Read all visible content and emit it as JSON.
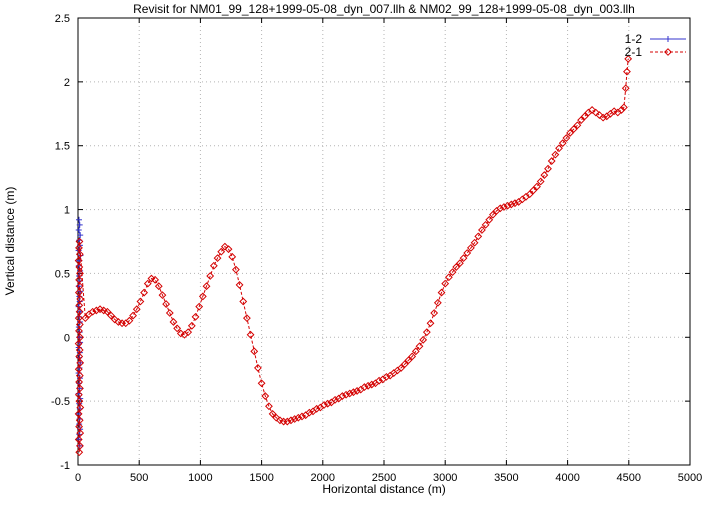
{
  "chart_data": {
    "type": "line",
    "title": "Revisit for NM01_99_128+1999-05-08_dyn_007.llh & NM02_99_128+1999-05-08_dyn_003.llh",
    "xlabel": "Horizontal distance (m)",
    "ylabel": "Vertical distance (m)",
    "xlim": [
      0,
      5000
    ],
    "ylim": [
      -1,
      2.5
    ],
    "grid": true,
    "grid_color": "#b4b4b4",
    "frame_color": "#000000",
    "legend_position": "top-right",
    "x_ticks": {
      "values": [
        0,
        500,
        1000,
        1500,
        2000,
        2500,
        3000,
        3500,
        4000,
        4500,
        5000
      ],
      "labels": [
        "0",
        "500",
        "1000",
        "1500",
        "2000",
        "2500",
        "3000",
        "3500",
        "4000",
        "4500",
        "5000"
      ]
    },
    "y_ticks": {
      "values": [
        -1,
        -0.5,
        0,
        0.5,
        1,
        1.5,
        2,
        2.5
      ],
      "labels": [
        "-1",
        "-0.5",
        "0",
        "0.5",
        "1",
        "1.5",
        "2",
        "2.5"
      ]
    },
    "series": [
      {
        "name": "1-2",
        "color": "#3333cc",
        "marker": "plus",
        "line": "solid",
        "points": [
          [
            8,
            0.92
          ],
          [
            14,
            0.88
          ],
          [
            6,
            0.84
          ],
          [
            18,
            0.8
          ],
          [
            10,
            0.76
          ],
          [
            16,
            0.72
          ],
          [
            5,
            0.68
          ],
          [
            20,
            0.64
          ],
          [
            12,
            0.6
          ],
          [
            7,
            0.56
          ],
          [
            17,
            0.52
          ],
          [
            9,
            0.48
          ],
          [
            15,
            0.44
          ],
          [
            6,
            0.4
          ],
          [
            19,
            0.36
          ],
          [
            11,
            0.32
          ],
          [
            14,
            0.28
          ],
          [
            5,
            0.24
          ],
          [
            18,
            0.2
          ],
          [
            9,
            0.16
          ],
          [
            16,
            0.12
          ],
          [
            7,
            0.08
          ],
          [
            13,
            0.04
          ],
          [
            10,
            0.0
          ],
          [
            17,
            -0.04
          ],
          [
            6,
            -0.08
          ],
          [
            15,
            -0.12
          ],
          [
            9,
            -0.16
          ],
          [
            19,
            -0.2
          ],
          [
            12,
            -0.24
          ],
          [
            5,
            -0.28
          ],
          [
            16,
            -0.32
          ],
          [
            8,
            -0.36
          ],
          [
            14,
            -0.4
          ],
          [
            6,
            -0.44
          ],
          [
            18,
            -0.48
          ],
          [
            10,
            -0.52
          ],
          [
            15,
            -0.56
          ],
          [
            7,
            -0.6
          ],
          [
            13,
            -0.64
          ],
          [
            9,
            -0.68
          ],
          [
            17,
            -0.72
          ],
          [
            11,
            -0.76
          ],
          [
            6,
            -0.8
          ],
          [
            14,
            -0.85
          ]
        ]
      },
      {
        "name": "2-1",
        "color": "#d40000",
        "marker": "diamond",
        "line": "dashed",
        "points": [
          [
            10,
            -0.9
          ],
          [
            16,
            -0.85
          ],
          [
            6,
            -0.8
          ],
          [
            18,
            -0.75
          ],
          [
            9,
            -0.7
          ],
          [
            14,
            -0.65
          ],
          [
            5,
            -0.6
          ],
          [
            19,
            -0.55
          ],
          [
            11,
            -0.5
          ],
          [
            7,
            -0.45
          ],
          [
            16,
            -0.4
          ],
          [
            9,
            -0.35
          ],
          [
            15,
            -0.3
          ],
          [
            6,
            -0.25
          ],
          [
            18,
            -0.2
          ],
          [
            10,
            -0.15
          ],
          [
            14,
            -0.1
          ],
          [
            5,
            -0.05
          ],
          [
            17,
            0.0
          ],
          [
            8,
            0.05
          ],
          [
            15,
            0.1
          ],
          [
            6,
            0.15
          ],
          [
            13,
            0.2
          ],
          [
            10,
            0.25
          ],
          [
            18,
            0.3
          ],
          [
            7,
            0.35
          ],
          [
            14,
            0.4
          ],
          [
            9,
            0.45
          ],
          [
            16,
            0.5
          ],
          [
            11,
            0.55
          ],
          [
            5,
            0.6
          ],
          [
            15,
            0.65
          ],
          [
            8,
            0.7
          ],
          [
            12,
            0.75
          ],
          [
            60,
            0.15
          ],
          [
            90,
            0.18
          ],
          [
            120,
            0.2
          ],
          [
            150,
            0.21
          ],
          [
            180,
            0.22
          ],
          [
            210,
            0.21
          ],
          [
            240,
            0.2
          ],
          [
            270,
            0.17
          ],
          [
            300,
            0.14
          ],
          [
            330,
            0.12
          ],
          [
            360,
            0.11
          ],
          [
            390,
            0.11
          ],
          [
            420,
            0.13
          ],
          [
            450,
            0.17
          ],
          [
            480,
            0.22
          ],
          [
            510,
            0.28
          ],
          [
            540,
            0.35
          ],
          [
            570,
            0.42
          ],
          [
            600,
            0.46
          ],
          [
            630,
            0.45
          ],
          [
            660,
            0.4
          ],
          [
            690,
            0.33
          ],
          [
            720,
            0.26
          ],
          [
            750,
            0.19
          ],
          [
            780,
            0.12
          ],
          [
            810,
            0.07
          ],
          [
            840,
            0.03
          ],
          [
            870,
            0.02
          ],
          [
            900,
            0.04
          ],
          [
            930,
            0.09
          ],
          [
            960,
            0.16
          ],
          [
            990,
            0.24
          ],
          [
            1020,
            0.32
          ],
          [
            1050,
            0.4
          ],
          [
            1080,
            0.48
          ],
          [
            1110,
            0.56
          ],
          [
            1140,
            0.62
          ],
          [
            1170,
            0.67
          ],
          [
            1200,
            0.71
          ],
          [
            1230,
            0.69
          ],
          [
            1260,
            0.63
          ],
          [
            1290,
            0.53
          ],
          [
            1320,
            0.41
          ],
          [
            1350,
            0.28
          ],
          [
            1380,
            0.15
          ],
          [
            1410,
            0.02
          ],
          [
            1440,
            -0.11
          ],
          [
            1470,
            -0.24
          ],
          [
            1500,
            -0.36
          ],
          [
            1530,
            -0.46
          ],
          [
            1560,
            -0.54
          ],
          [
            1590,
            -0.6
          ],
          [
            1620,
            -0.63
          ],
          [
            1650,
            -0.65
          ],
          [
            1680,
            -0.66
          ],
          [
            1710,
            -0.66
          ],
          [
            1740,
            -0.65
          ],
          [
            1770,
            -0.64
          ],
          [
            1800,
            -0.63
          ],
          [
            1830,
            -0.62
          ],
          [
            1860,
            -0.61
          ],
          [
            1890,
            -0.59
          ],
          [
            1920,
            -0.58
          ],
          [
            1950,
            -0.56
          ],
          [
            1980,
            -0.55
          ],
          [
            2010,
            -0.53
          ],
          [
            2040,
            -0.52
          ],
          [
            2070,
            -0.51
          ],
          [
            2100,
            -0.49
          ],
          [
            2130,
            -0.48
          ],
          [
            2160,
            -0.46
          ],
          [
            2190,
            -0.45
          ],
          [
            2220,
            -0.44
          ],
          [
            2250,
            -0.43
          ],
          [
            2280,
            -0.42
          ],
          [
            2310,
            -0.41
          ],
          [
            2340,
            -0.39
          ],
          [
            2370,
            -0.38
          ],
          [
            2400,
            -0.37
          ],
          [
            2430,
            -0.36
          ],
          [
            2460,
            -0.34
          ],
          [
            2490,
            -0.33
          ],
          [
            2520,
            -0.31
          ],
          [
            2550,
            -0.3
          ],
          [
            2580,
            -0.28
          ],
          [
            2610,
            -0.26
          ],
          [
            2640,
            -0.24
          ],
          [
            2670,
            -0.21
          ],
          [
            2700,
            -0.18
          ],
          [
            2730,
            -0.15
          ],
          [
            2760,
            -0.11
          ],
          [
            2790,
            -0.07
          ],
          [
            2820,
            -0.02
          ],
          [
            2850,
            0.04
          ],
          [
            2880,
            0.11
          ],
          [
            2910,
            0.19
          ],
          [
            2940,
            0.27
          ],
          [
            2970,
            0.35
          ],
          [
            3000,
            0.42
          ],
          [
            3030,
            0.47
          ],
          [
            3060,
            0.51
          ],
          [
            3090,
            0.55
          ],
          [
            3120,
            0.58
          ],
          [
            3150,
            0.62
          ],
          [
            3180,
            0.66
          ],
          [
            3210,
            0.7
          ],
          [
            3240,
            0.74
          ],
          [
            3270,
            0.79
          ],
          [
            3300,
            0.84
          ],
          [
            3330,
            0.88
          ],
          [
            3360,
            0.92
          ],
          [
            3390,
            0.96
          ],
          [
            3420,
            0.99
          ],
          [
            3450,
            1.01
          ],
          [
            3480,
            1.02
          ],
          [
            3510,
            1.03
          ],
          [
            3540,
            1.04
          ],
          [
            3570,
            1.05
          ],
          [
            3600,
            1.06
          ],
          [
            3630,
            1.08
          ],
          [
            3660,
            1.1
          ],
          [
            3690,
            1.12
          ],
          [
            3720,
            1.15
          ],
          [
            3750,
            1.18
          ],
          [
            3780,
            1.22
          ],
          [
            3810,
            1.27
          ],
          [
            3840,
            1.32
          ],
          [
            3870,
            1.38
          ],
          [
            3900,
            1.43
          ],
          [
            3930,
            1.48
          ],
          [
            3960,
            1.52
          ],
          [
            3990,
            1.56
          ],
          [
            4020,
            1.6
          ],
          [
            4050,
            1.63
          ],
          [
            4080,
            1.66
          ],
          [
            4110,
            1.7
          ],
          [
            4140,
            1.73
          ],
          [
            4170,
            1.76
          ],
          [
            4200,
            1.78
          ],
          [
            4230,
            1.76
          ],
          [
            4260,
            1.74
          ],
          [
            4290,
            1.72
          ],
          [
            4320,
            1.73
          ],
          [
            4350,
            1.75
          ],
          [
            4380,
            1.77
          ],
          [
            4410,
            1.76
          ],
          [
            4440,
            1.78
          ],
          [
            4460,
            1.8
          ],
          [
            4475,
            1.95
          ],
          [
            4485,
            2.08
          ],
          [
            4495,
            2.18
          ]
        ]
      }
    ]
  }
}
